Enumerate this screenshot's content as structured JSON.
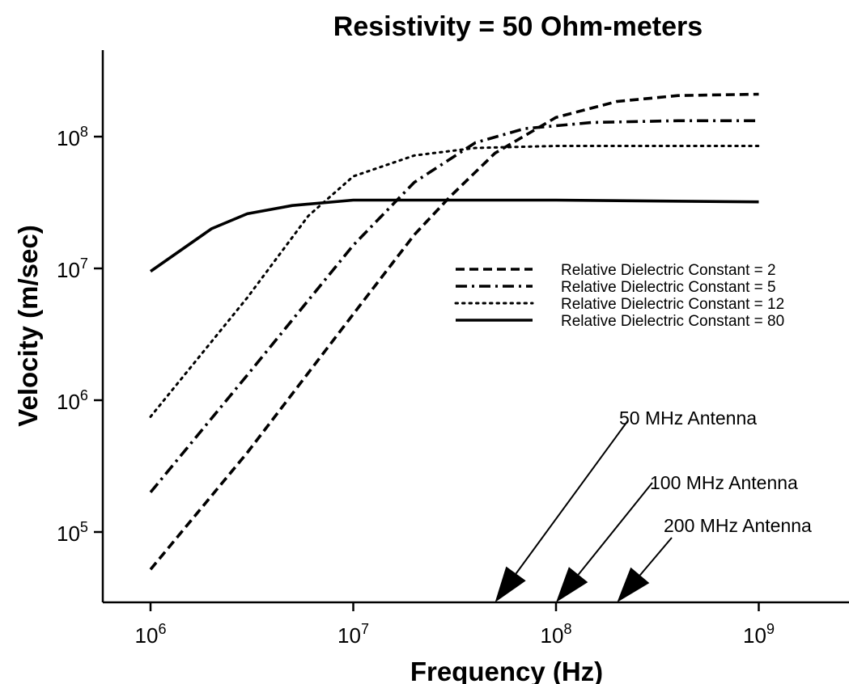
{
  "chart_data": {
    "type": "line",
    "title": "Resistivity = 50 Ohm-meters",
    "xlabel": "Frequency (Hz)",
    "ylabel": "Velocity (m/sec)",
    "x_scale": "log",
    "y_scale": "log",
    "xlim": [
      500000,
      2000000000
    ],
    "ylim": [
      30000,
      550000000
    ],
    "x_ticks": [
      {
        "value": 1000000,
        "base": "10",
        "exp": "6"
      },
      {
        "value": 10000000,
        "base": "10",
        "exp": "7"
      },
      {
        "value": 100000000,
        "base": "10",
        "exp": "8"
      },
      {
        "value": 1000000000,
        "base": "10",
        "exp": "9"
      }
    ],
    "y_ticks": [
      {
        "value": 100000,
        "base": "10",
        "exp": "5"
      },
      {
        "value": 1000000,
        "base": "10",
        "exp": "6"
      },
      {
        "value": 10000000,
        "base": "10",
        "exp": "7"
      },
      {
        "value": 100000000,
        "base": "10",
        "exp": "8"
      }
    ],
    "grid": false,
    "legend_position": "center-right",
    "series": [
      {
        "name": "Relative Dielectric Constant = 2",
        "style": "dashed",
        "points": [
          [
            1000000,
            52000
          ],
          [
            3000000,
            400000
          ],
          [
            10000000,
            4500000
          ],
          [
            20000000,
            18000000
          ],
          [
            30000000,
            35000000
          ],
          [
            50000000,
            75000000
          ],
          [
            100000000,
            140000000
          ],
          [
            200000000,
            185000000
          ],
          [
            400000000,
            205000000
          ],
          [
            1000000000,
            210000000
          ]
        ]
      },
      {
        "name": "Relative Dielectric Constant = 5",
        "style": "dash-dot",
        "points": [
          [
            1000000,
            200000
          ],
          [
            3000000,
            1550000
          ],
          [
            10000000,
            15000000
          ],
          [
            20000000,
            45000000
          ],
          [
            40000000,
            90000000
          ],
          [
            70000000,
            115000000
          ],
          [
            150000000,
            128000000
          ],
          [
            400000000,
            132000000
          ],
          [
            1000000000,
            132000000
          ]
        ]
      },
      {
        "name": "Relative Dielectric Constant = 12",
        "style": "dotted",
        "points": [
          [
            1000000,
            750000
          ],
          [
            3000000,
            6000000
          ],
          [
            6000000,
            25000000
          ],
          [
            10000000,
            50000000
          ],
          [
            20000000,
            72000000
          ],
          [
            40000000,
            82000000
          ],
          [
            100000000,
            85000000
          ],
          [
            1000000000,
            85000000
          ]
        ]
      },
      {
        "name": "Relative Dielectric Constant = 80",
        "style": "solid",
        "points": [
          [
            1000000,
            9500000
          ],
          [
            2000000,
            20000000
          ],
          [
            3000000,
            26000000
          ],
          [
            5000000,
            30000000
          ],
          [
            10000000,
            33000000
          ],
          [
            100000000,
            33000000
          ],
          [
            1000000000,
            32000000
          ]
        ]
      }
    ],
    "annotations": [
      {
        "text": "50 MHz Antenna",
        "x": 50000000
      },
      {
        "text": "100 MHz Antenna",
        "x": 100000000
      },
      {
        "text": "200 MHz Antenna",
        "x": 200000000
      }
    ]
  }
}
